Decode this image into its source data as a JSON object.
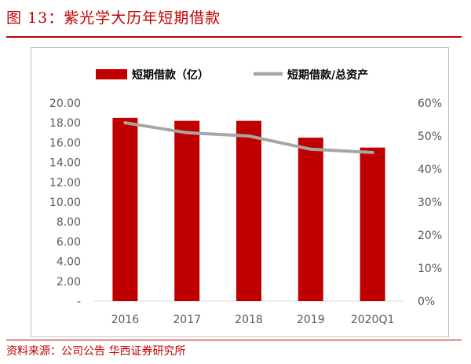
{
  "figure": {
    "title": "图 13：紫光学大历年短期借款",
    "source": "资料来源：公司公告  华西证券研究所"
  },
  "colors": {
    "accent": "#c00000",
    "bar": "#c00000",
    "line": "#a6a6a6"
  },
  "chart_data": {
    "type": "bar+line",
    "categories": [
      "2016",
      "2017",
      "2018",
      "2019",
      "2020Q1"
    ],
    "series": [
      {
        "name": "短期借款（亿）",
        "type": "bar",
        "axis": "left",
        "values": [
          18.5,
          18.2,
          18.2,
          16.5,
          15.5
        ]
      },
      {
        "name": "短期借款/总资产",
        "type": "line",
        "axis": "right",
        "values": [
          0.54,
          0.51,
          0.5,
          0.46,
          0.45
        ]
      }
    ],
    "y_left": {
      "range": [
        0,
        20
      ],
      "ticks": [
        "-",
        "2.00",
        "4.00",
        "6.00",
        "8.00",
        "10.00",
        "12.00",
        "14.00",
        "16.00",
        "18.00",
        "20.00"
      ]
    },
    "y_right": {
      "range": [
        0,
        0.6
      ],
      "ticks": [
        "0%",
        "10%",
        "20%",
        "30%",
        "40%",
        "50%",
        "60%"
      ]
    },
    "grid": false,
    "legend_position": "top"
  }
}
